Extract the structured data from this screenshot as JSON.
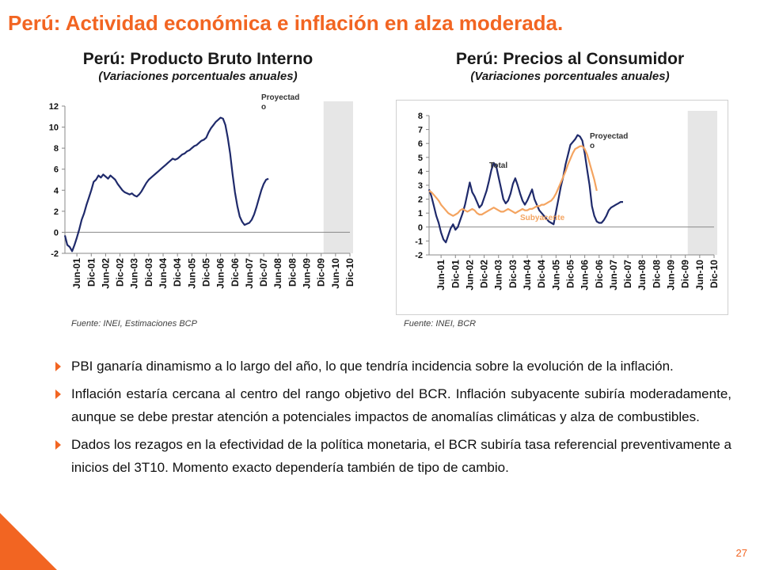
{
  "slide": {
    "title": "Perú: Actividad económica e inflación en alza moderada.",
    "page_number": "27",
    "bullets": [
      "PBI ganaría dinamismo a lo largo del año, lo que tendría incidencia sobre la evolución de la inflación.",
      "Inflación estaría cercana al centro del rango objetivo del BCR. Inflación subyacente subiría moderadamente, aunque se debe prestar atención a potenciales impactos de anomalías climáticas y alza de combustibles.",
      "Dados los rezagos en la efectividad de la política monetaria, el BCR subiría tasa referencial preventivamente a inicios del 3T10. Momento exacto dependería también de tipo de cambio."
    ],
    "colors": {
      "accent": "#F26522",
      "navy": "#1F2A6B",
      "orange": "#F4A460",
      "shade": "#E6E6E6"
    }
  },
  "chart_data": [
    {
      "type": "line",
      "title": "Perú: Producto Bruto Interno",
      "subtitle": "(Variaciones porcentuales anuales)",
      "source": "Fuente: INEI, Estimaciones BCP",
      "annotation": "Proyectad o",
      "xlabel": "",
      "ylabel": "",
      "ylim": [
        -2,
        12
      ],
      "yticks": [
        -2,
        0,
        2,
        4,
        6,
        8,
        10,
        12
      ],
      "xtick_labels": [
        "Jun-01",
        "Dic-01",
        "Jun-02",
        "Dic-02",
        "Jun-03",
        "Dic-03",
        "Jun-04",
        "Dic-04",
        "Jun-05",
        "Dic-05",
        "Jun-06",
        "Dic-06",
        "Jun-07",
        "Dic-07",
        "Jun-08",
        "Dic-08",
        "Jun-09",
        "Dic-09",
        "Jun-10",
        "Dic-10"
      ],
      "x_start": "2001-01",
      "x_end": "2010-12",
      "projection_start": "2010-01",
      "grid": false,
      "series": [
        {
          "name": "",
          "color": "#1F2A6B",
          "values": [
            -0.3,
            -1.2,
            -1.4,
            -1.8,
            -1.2,
            -0.5,
            0.3,
            1.2,
            1.8,
            2.6,
            3.3,
            4.0,
            4.8,
            5.0,
            5.4,
            5.2,
            5.5,
            5.3,
            5.1,
            5.4,
            5.2,
            5.0,
            4.6,
            4.3,
            4.0,
            3.8,
            3.7,
            3.6,
            3.7,
            3.5,
            3.4,
            3.6,
            3.9,
            4.3,
            4.7,
            5.0,
            5.2,
            5.4,
            5.6,
            5.8,
            6.0,
            6.2,
            6.4,
            6.6,
            6.8,
            7.0,
            6.9,
            7.0,
            7.2,
            7.4,
            7.5,
            7.7,
            7.8,
            8.0,
            8.2,
            8.3,
            8.5,
            8.7,
            8.8,
            9.0,
            9.5,
            9.9,
            10.2,
            10.5,
            10.7,
            10.9,
            10.8,
            10.2,
            9.0,
            7.5,
            5.5,
            3.8,
            2.5,
            1.5,
            1.0,
            0.7,
            0.8,
            0.9,
            1.2,
            1.7,
            2.4,
            3.2,
            4.0,
            4.6,
            5.0,
            5.1
          ]
        }
      ]
    },
    {
      "type": "line",
      "title": "Perú: Precios al Consumidor",
      "subtitle": "(Variaciones porcentuales anuales)",
      "source": "Fuente: INEI, BCR",
      "annotation": "Proyectad o",
      "xlabel": "",
      "ylabel": "",
      "ylim": [
        -2,
        8
      ],
      "yticks": [
        -2,
        -1,
        0,
        1,
        2,
        3,
        4,
        5,
        6,
        7,
        8
      ],
      "xtick_labels": [
        "Jun-01",
        "Dic-01",
        "Jun-02",
        "Dic-02",
        "Jun-03",
        "Dic-03",
        "Jun-04",
        "Dic-04",
        "Jun-05",
        "Dic-05",
        "Jun-06",
        "Dic-06",
        "Jun-07",
        "Dic-07",
        "Jun-08",
        "Dic-08",
        "Jun-09",
        "Dic-09",
        "Jun-10",
        "Dic-10"
      ],
      "x_start": "2001-01",
      "x_end": "2010-12",
      "projection_start": "2010-01",
      "grid": false,
      "series": [
        {
          "name": "Total",
          "color": "#1F2A6B",
          "values": [
            2.7,
            2.2,
            1.5,
            0.8,
            0.3,
            -0.4,
            -0.9,
            -1.1,
            -0.6,
            -0.1,
            0.2,
            -0.2,
            0.0,
            0.5,
            1.0,
            1.6,
            2.4,
            3.2,
            2.5,
            2.2,
            1.8,
            1.4,
            1.6,
            2.1,
            2.6,
            3.3,
            4.1,
            4.6,
            4.4,
            3.6,
            2.8,
            2.0,
            1.7,
            1.9,
            2.4,
            3.1,
            3.5,
            3.0,
            2.4,
            1.9,
            1.6,
            1.9,
            2.3,
            2.7,
            2.0,
            1.6,
            1.2,
            1.0,
            0.8,
            0.6,
            0.4,
            0.3,
            0.2,
            1.1,
            2.0,
            2.9,
            3.6,
            4.5,
            5.2,
            5.9,
            6.1,
            6.3,
            6.6,
            6.5,
            6.2,
            5.3,
            4.1,
            3.0,
            1.5,
            0.8,
            0.4,
            0.3,
            0.3,
            0.5,
            0.8,
            1.2,
            1.4,
            1.5,
            1.6,
            1.7,
            1.8,
            1.8
          ]
        },
        {
          "name": "Subyacente",
          "color": "#F4A460",
          "values": [
            2.6,
            2.5,
            2.3,
            2.1,
            1.9,
            1.6,
            1.4,
            1.2,
            1.0,
            0.9,
            0.8,
            0.9,
            1.0,
            1.2,
            1.3,
            1.2,
            1.1,
            1.2,
            1.3,
            1.2,
            1.0,
            0.9,
            0.9,
            1.0,
            1.1,
            1.2,
            1.3,
            1.4,
            1.3,
            1.2,
            1.1,
            1.1,
            1.2,
            1.3,
            1.2,
            1.1,
            1.0,
            1.1,
            1.2,
            1.3,
            1.2,
            1.2,
            1.3,
            1.3,
            1.4,
            1.5,
            1.5,
            1.6,
            1.6,
            1.7,
            1.8,
            1.9,
            2.1,
            2.4,
            2.8,
            3.2,
            3.6,
            4.0,
            4.5,
            4.9,
            5.3,
            5.6,
            5.7,
            5.8,
            5.8,
            5.6,
            5.2,
            4.6,
            4.0,
            3.4,
            2.6
          ]
        }
      ]
    }
  ]
}
